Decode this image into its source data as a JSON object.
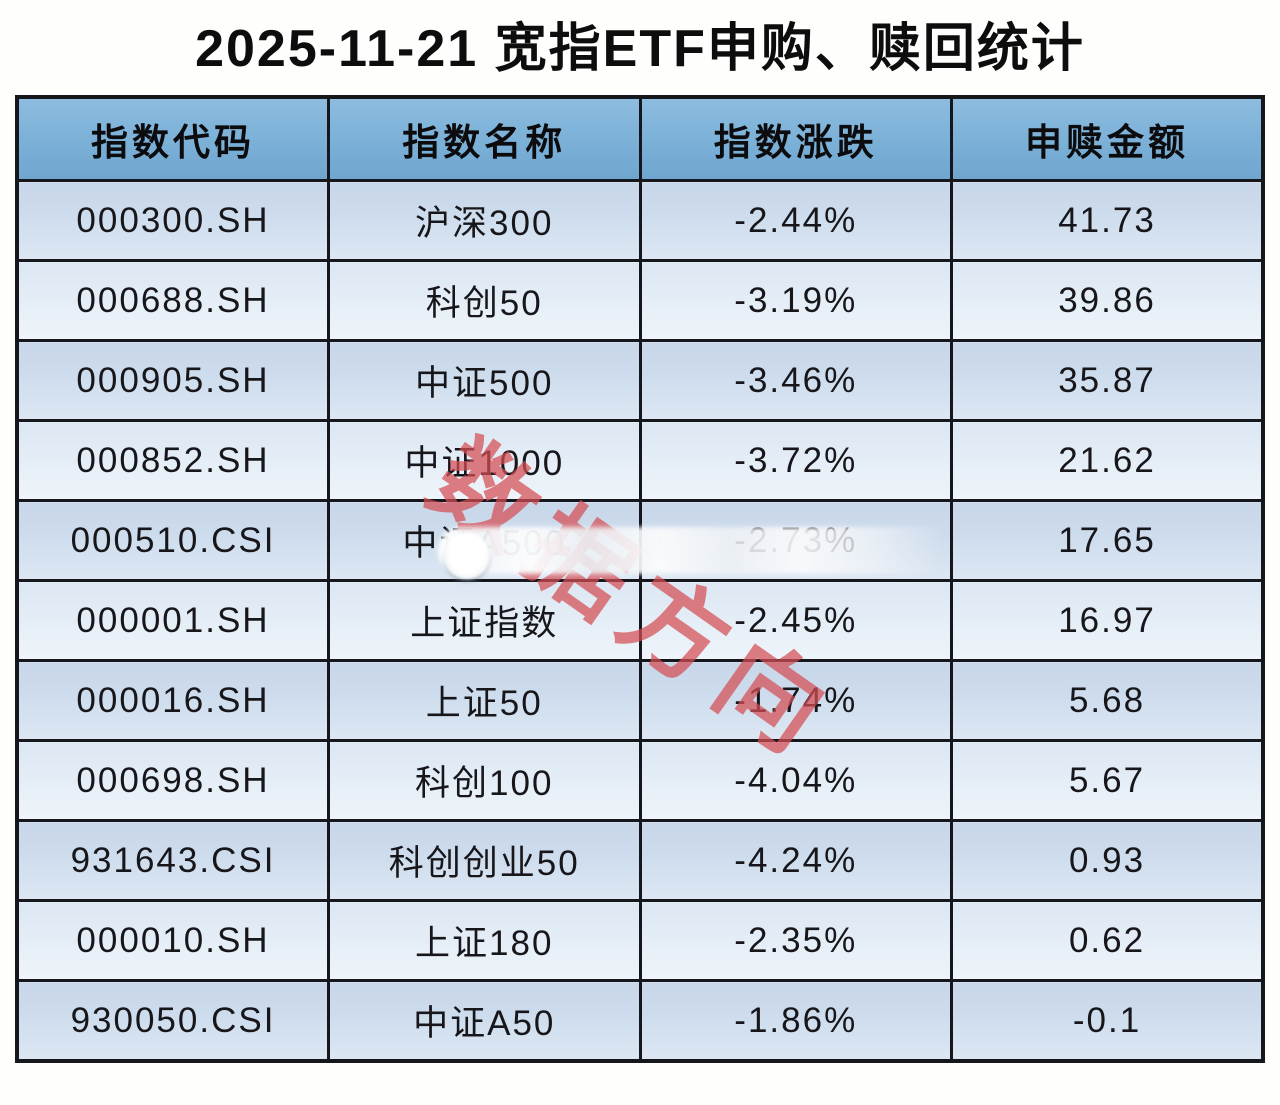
{
  "title": "2025-11-21 宽指ETF申购、赎回统计",
  "watermark_text": "数据方向",
  "chart_data": {
    "type": "table",
    "title": "2025-11-21 宽指ETF申购、赎回统计",
    "columns": [
      "指数代码",
      "指数名称",
      "指数涨跌",
      "申赎金额"
    ],
    "rows": [
      [
        "000300.SH",
        "沪深300",
        "-2.44%",
        "41.73"
      ],
      [
        "000688.SH",
        "科创50",
        "-3.19%",
        "39.86"
      ],
      [
        "000905.SH",
        "中证500",
        "-3.46%",
        "35.87"
      ],
      [
        "000852.SH",
        "中证1000",
        "-3.72%",
        "21.62"
      ],
      [
        "000510.CSI",
        "中证A500",
        "-2.73%",
        "17.65"
      ],
      [
        "000001.SH",
        "上证指数",
        "-2.45%",
        "16.97"
      ],
      [
        "000016.SH",
        "上证50",
        "-1.74%",
        "5.68"
      ],
      [
        "000698.SH",
        "科创100",
        "-4.04%",
        "5.67"
      ],
      [
        "931643.CSI",
        "科创创业50",
        "-4.24%",
        "0.93"
      ],
      [
        "000010.SH",
        "上证180",
        "-2.35%",
        "0.62"
      ],
      [
        "930050.CSI",
        "中证A50",
        "-1.86%",
        "-0.1"
      ]
    ]
  },
  "colors": {
    "title_text": "#0d0d0d",
    "header_bg": "#7bb0d7",
    "row_dark": "#cedded",
    "row_light": "#e4edf6",
    "border": "#15171d",
    "watermark": "#d54e54"
  }
}
